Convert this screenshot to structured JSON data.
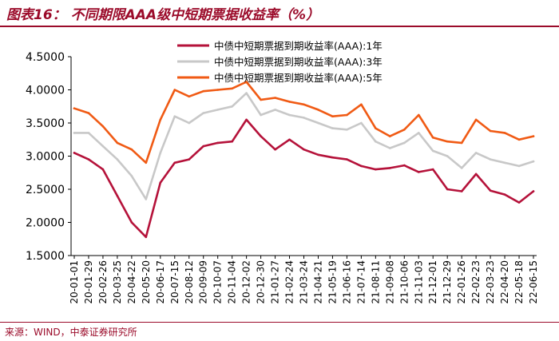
{
  "header": {
    "title": "图表16： 不同期限AAA级中短期票据收益率（%）"
  },
  "footer": {
    "source": "来源：WIND，中泰证券研究所"
  },
  "colors": {
    "accent": "#9b0b2a"
  },
  "chart_data": {
    "type": "line",
    "ylim": [
      1.5,
      4.5
    ],
    "yticks": [
      "1.5000",
      "2.0000",
      "2.5000",
      "3.0000",
      "3.5000",
      "4.0000",
      "4.5000"
    ],
    "categories": [
      "20-01-01",
      "20-01-29",
      "20-02-26",
      "20-03-25",
      "20-04-22",
      "20-05-20",
      "20-06-17",
      "20-07-15",
      "20-08-12",
      "20-09-09",
      "20-10-07",
      "20-11-04",
      "20-12-02",
      "20-12-30",
      "21-01-27",
      "21-02-24",
      "21-03-24",
      "21-04-21",
      "21-05-19",
      "21-06-16",
      "21-07-14",
      "21-08-11",
      "21-09-08",
      "21-10-06",
      "21-11-03",
      "21-12-01",
      "21-12-29",
      "22-01-26",
      "22-02-23",
      "22-03-23",
      "22-04-20",
      "22-05-18",
      "22-06-15"
    ],
    "legend_position": "top-right",
    "series": [
      {
        "name": "中债中短期票据到期收益率(AAA):1年",
        "color": "#b5123a",
        "values": [
          3.05,
          2.95,
          2.8,
          2.4,
          2.0,
          1.78,
          2.6,
          2.9,
          2.95,
          3.15,
          3.2,
          3.22,
          3.55,
          3.3,
          3.1,
          3.25,
          3.1,
          3.02,
          2.98,
          2.95,
          2.85,
          2.8,
          2.82,
          2.86,
          2.76,
          2.8,
          2.5,
          2.47,
          2.73,
          2.48,
          2.42,
          2.3,
          2.47
        ]
      },
      {
        "name": "中债中短期票据到期收益率(AAA):3年",
        "color": "#c8c8c8",
        "values": [
          3.35,
          3.35,
          3.15,
          2.95,
          2.7,
          2.35,
          3.05,
          3.6,
          3.5,
          3.65,
          3.7,
          3.75,
          3.95,
          3.62,
          3.7,
          3.62,
          3.58,
          3.5,
          3.42,
          3.4,
          3.5,
          3.22,
          3.12,
          3.2,
          3.35,
          3.08,
          3.0,
          2.82,
          3.05,
          2.95,
          2.9,
          2.85,
          2.92
        ]
      },
      {
        "name": "中债中短期票据到期收益率(AAA):5年",
        "color": "#f05a14",
        "values": [
          3.72,
          3.65,
          3.45,
          3.2,
          3.1,
          2.9,
          3.55,
          4.0,
          3.9,
          3.98,
          4.0,
          4.02,
          4.12,
          3.85,
          3.88,
          3.82,
          3.78,
          3.7,
          3.6,
          3.62,
          3.78,
          3.42,
          3.3,
          3.4,
          3.62,
          3.28,
          3.22,
          3.2,
          3.55,
          3.38,
          3.35,
          3.25,
          3.3
        ]
      }
    ]
  }
}
